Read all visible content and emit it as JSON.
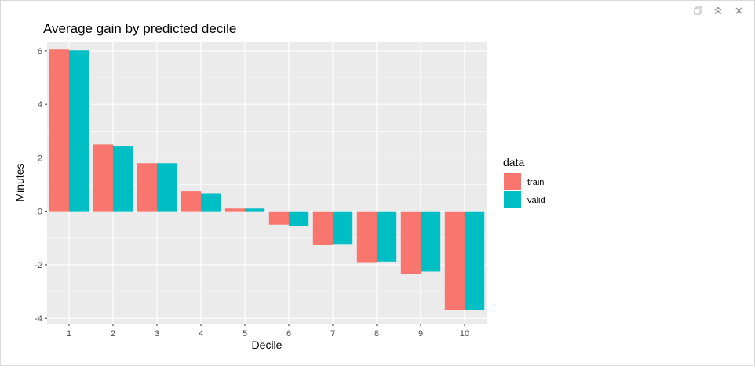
{
  "window": {
    "icons": [
      {
        "name": "copy-icon"
      },
      {
        "name": "collapse-icon"
      },
      {
        "name": "close-icon"
      }
    ]
  },
  "chart_data": {
    "type": "bar",
    "title": "Average gain by predicted decile",
    "xlabel": "Decile",
    "ylabel": "Minutes",
    "categories": [
      "1",
      "2",
      "3",
      "4",
      "5",
      "6",
      "7",
      "8",
      "9",
      "10"
    ],
    "series": [
      {
        "name": "train",
        "color": "#F8766D",
        "values": [
          6.05,
          2.5,
          1.8,
          0.75,
          0.1,
          -0.5,
          -1.25,
          -1.9,
          -2.35,
          -3.7
        ]
      },
      {
        "name": "valid",
        "color": "#00BFC4",
        "values": [
          6.02,
          2.45,
          1.8,
          0.68,
          0.1,
          -0.55,
          -1.22,
          -1.88,
          -2.25,
          -3.68
        ]
      }
    ],
    "ylim": [
      -4.2,
      6.35
    ],
    "yticks": [
      -4,
      -2,
      0,
      2,
      4,
      6
    ],
    "yticklabels": [
      "-4",
      "-2",
      "0",
      "2",
      "4",
      "6"
    ],
    "grid": true,
    "legend": {
      "title": "data",
      "position": "right"
    },
    "panel_background": "#EBEBEB"
  }
}
